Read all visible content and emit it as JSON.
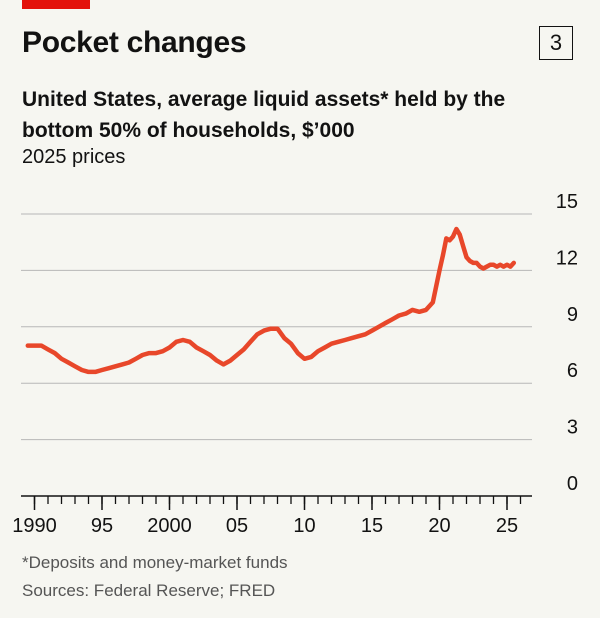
{
  "header": {
    "title": "Pocket changes",
    "chart_number": "3",
    "subtitle": "United States, average liquid assets* held by the bottom 50% of households, $’000",
    "unit": "2025 prices"
  },
  "footer": {
    "footnote": "*Deposits and money-market funds",
    "source": "Sources: Federal Reserve; FRED"
  },
  "colors": {
    "line": "#e8472a",
    "grid": "#b7b7b7",
    "accent": "#e3120b",
    "background": "#f6f6f1"
  },
  "chart_data": {
    "type": "line",
    "title": "Pocket changes",
    "xlabel": "",
    "ylabel": "",
    "ylim": [
      0,
      15
    ],
    "yticks": [
      0,
      3,
      6,
      9,
      12,
      15
    ],
    "xlim": [
      1989,
      2027
    ],
    "xticks": [
      {
        "year": 1990,
        "label": "1990"
      },
      {
        "year": 1995,
        "label": "95"
      },
      {
        "year": 2000,
        "label": "2000"
      },
      {
        "year": 2005,
        "label": "05"
      },
      {
        "year": 2010,
        "label": "10"
      },
      {
        "year": 2015,
        "label": "15"
      },
      {
        "year": 2020,
        "label": "20"
      },
      {
        "year": 2025,
        "label": "25"
      }
    ],
    "grid": true,
    "legend": "none",
    "series": [
      {
        "x": [
          1989.5,
          1990.0,
          1990.5,
          1991.0,
          1991.5,
          1992.0,
          1992.5,
          1993.0,
          1993.5,
          1994.0,
          1994.5,
          1995.0,
          1995.5,
          1996.0,
          1996.5,
          1997.0,
          1997.5,
          1998.0,
          1998.5,
          1999.0,
          1999.5,
          2000.0,
          2000.5,
          2001.0,
          2001.5,
          2002.0,
          2002.5,
          2003.0,
          2003.5,
          2004.0,
          2004.5,
          2005.0,
          2005.5,
          2006.0,
          2006.5,
          2007.0,
          2007.5,
          2008.0,
          2008.5,
          2009.0,
          2009.5,
          2010.0,
          2010.5,
          2011.0,
          2011.5,
          2012.0,
          2012.5,
          2013.0,
          2013.5,
          2014.0,
          2014.5,
          2015.0,
          2015.5,
          2016.0,
          2016.5,
          2017.0,
          2017.5,
          2018.0,
          2018.5,
          2019.0,
          2019.5,
          2020.0,
          2020.25,
          2020.5,
          2020.75,
          2021.0,
          2021.25,
          2021.5,
          2021.75,
          2022.0,
          2022.25,
          2022.5,
          2022.75,
          2023.0,
          2023.25,
          2023.5,
          2023.75,
          2024.0,
          2024.25,
          2024.5,
          2024.75,
          2025.0,
          2025.25,
          2025.5
        ],
        "values": [
          8.0,
          8.0,
          8.0,
          7.8,
          7.6,
          7.3,
          7.1,
          6.9,
          6.7,
          6.6,
          6.6,
          6.7,
          6.8,
          6.9,
          7.0,
          7.1,
          7.3,
          7.5,
          7.6,
          7.6,
          7.7,
          7.9,
          8.2,
          8.3,
          8.2,
          7.9,
          7.7,
          7.5,
          7.2,
          7.0,
          7.2,
          7.5,
          7.8,
          8.2,
          8.6,
          8.8,
          8.9,
          8.9,
          8.4,
          8.1,
          7.6,
          7.3,
          7.4,
          7.7,
          7.9,
          8.1,
          8.2,
          8.3,
          8.4,
          8.5,
          8.6,
          8.8,
          9.0,
          9.2,
          9.4,
          9.6,
          9.7,
          9.9,
          9.8,
          9.9,
          10.3,
          12.0,
          12.8,
          13.7,
          13.6,
          13.8,
          14.2,
          13.9,
          13.3,
          12.7,
          12.5,
          12.4,
          12.4,
          12.2,
          12.1,
          12.2,
          12.3,
          12.3,
          12.2,
          12.3,
          12.2,
          12.3,
          12.2,
          12.4
        ]
      }
    ]
  }
}
